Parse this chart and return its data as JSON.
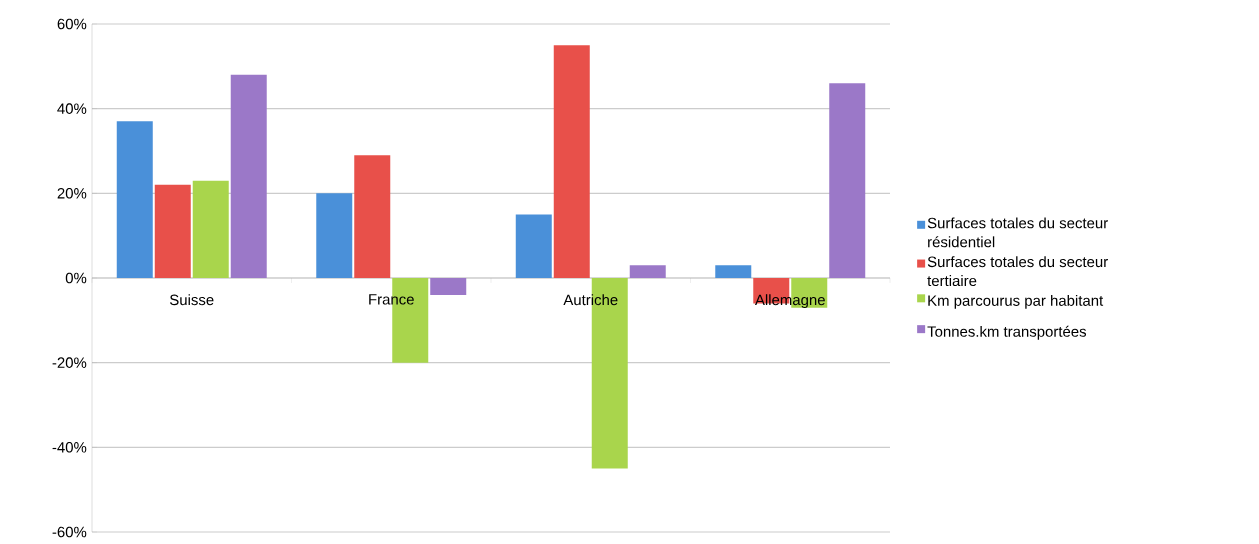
{
  "chart_data": {
    "type": "bar",
    "categories": [
      "Suisse",
      "France",
      "Autriche",
      "Allemagne"
    ],
    "series": [
      {
        "name": "Surfaces totales du secteur résidentiel",
        "color": "#4a90d9",
        "values": [
          37,
          20,
          15,
          3
        ]
      },
      {
        "name": "Surfaces totales du secteur tertiaire",
        "color": "#e8504a",
        "values": [
          22,
          29,
          55,
          -6
        ]
      },
      {
        "name": "Km parcourus par habitant",
        "color": "#a9d54c",
        "values": [
          23,
          -20,
          -45,
          -7
        ]
      },
      {
        "name": "Tonnes.km transportées",
        "color": "#9b78c8",
        "values": [
          48,
          -4,
          3,
          46
        ]
      }
    ],
    "ylim": [
      -60,
      60
    ],
    "yticks": [
      {
        "value": -60,
        "label": "-60%"
      },
      {
        "value": -40,
        "label": "-40%"
      },
      {
        "value": -20,
        "label": "-20%"
      },
      {
        "value": 0,
        "label": "0%"
      },
      {
        "value": 20,
        "label": "20%"
      },
      {
        "value": 40,
        "label": "40%"
      },
      {
        "value": 60,
        "label": "60%"
      }
    ],
    "grid": "y",
    "legend": "right"
  }
}
